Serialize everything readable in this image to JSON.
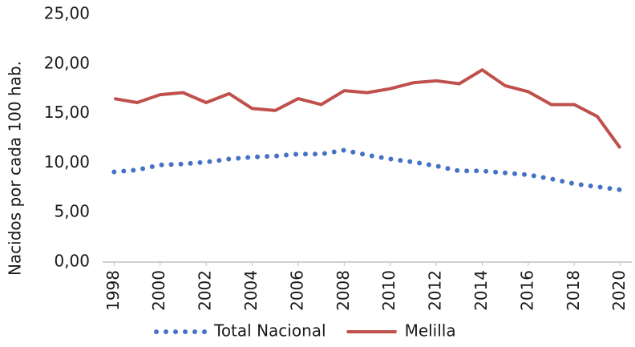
{
  "chart_data": {
    "type": "line",
    "y_label": "Nacidos por cada 100 hab.",
    "x": [
      1998,
      1999,
      2000,
      2001,
      2002,
      2003,
      2004,
      2005,
      2006,
      2007,
      2008,
      2009,
      2010,
      2011,
      2012,
      2013,
      2014,
      2015,
      2016,
      2017,
      2018,
      2019,
      2020
    ],
    "series": [
      {
        "name": "Total Nacional",
        "color": "#4472c4",
        "line_style": "dotted",
        "values": [
          9.1,
          9.3,
          9.8,
          9.9,
          10.1,
          10.4,
          10.6,
          10.7,
          10.9,
          10.9,
          11.3,
          10.8,
          10.4,
          10.1,
          9.7,
          9.2,
          9.2,
          9.0,
          8.8,
          8.4,
          7.9,
          7.6,
          7.3
        ]
      },
      {
        "name": "Melilla",
        "color": "#c0504d",
        "line_style": "solid",
        "values": [
          16.5,
          16.1,
          16.9,
          17.1,
          16.1,
          17.0,
          15.5,
          15.3,
          16.5,
          15.9,
          17.3,
          17.1,
          17.5,
          18.1,
          18.3,
          18.0,
          19.4,
          17.8,
          17.2,
          15.9,
          15.9,
          14.7,
          11.5
        ]
      }
    ],
    "xlim": [
      1997.5,
      2020.5
    ],
    "xticks": [
      1998,
      2000,
      2002,
      2004,
      2006,
      2008,
      2010,
      2012,
      2014,
      2016,
      2018,
      2020
    ],
    "ylim": [
      0,
      25
    ],
    "yticks": [
      {
        "value": 0,
        "label": "0,00"
      },
      {
        "value": 5,
        "label": "5,00"
      },
      {
        "value": 10,
        "label": "10,00"
      },
      {
        "value": 15,
        "label": "15,00"
      },
      {
        "value": 20,
        "label": "20,00"
      },
      {
        "value": 25,
        "label": "25,00"
      }
    ],
    "grid": false,
    "legend": "bottom"
  }
}
